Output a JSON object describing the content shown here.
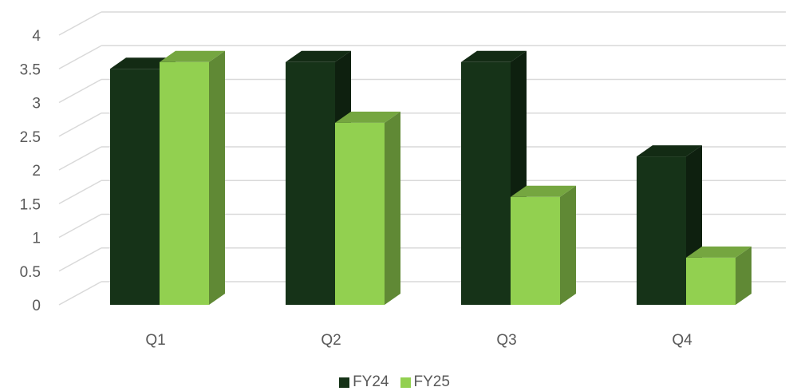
{
  "colors": {
    "FY24": "#163318",
    "FY25": "#92d050",
    "grid": "#d9d9d9",
    "text": "#595959"
  },
  "chart_data": {
    "type": "bar",
    "style": "3d-clustered-column",
    "categories": [
      "Q1",
      "Q2",
      "Q3",
      "Q4"
    ],
    "series": [
      {
        "name": "FY24",
        "values": [
          3.5,
          3.6,
          3.6,
          2.2
        ]
      },
      {
        "name": "FY25",
        "values": [
          3.6,
          2.7,
          1.6,
          0.7
        ]
      }
    ],
    "yticks": [
      "0",
      "0.5",
      "1",
      "1.5",
      "2",
      "2.5",
      "3",
      "3.5",
      "4"
    ],
    "ylim": [
      0,
      4.5
    ],
    "grid": true,
    "legend_position": "bottom"
  }
}
